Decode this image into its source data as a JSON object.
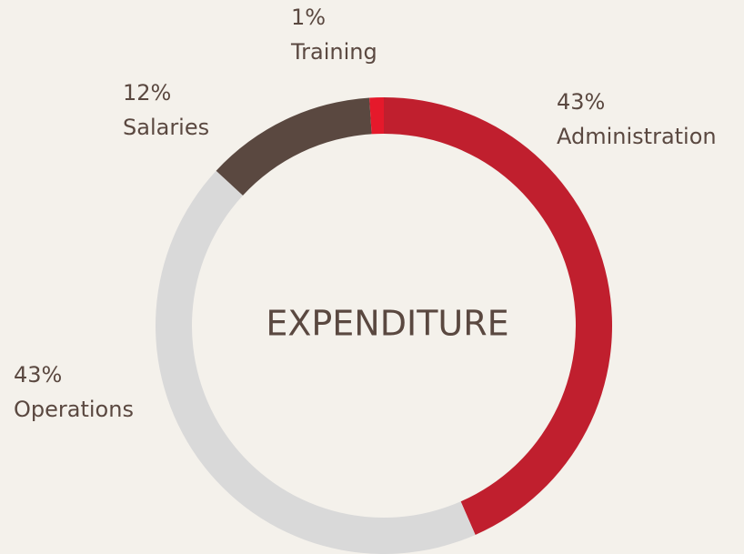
{
  "chart_data": {
    "type": "donut",
    "title": "EXPENDITURE",
    "categories": [
      "Administration",
      "Operations",
      "Salaries",
      "Training"
    ],
    "values": [
      43,
      43,
      12,
      1
    ],
    "value_labels": [
      "43%",
      "43%",
      "12%",
      "1%"
    ],
    "colors": [
      "#c01f2e",
      "#d9d9d9",
      "#5a4840",
      "#e5192b"
    ]
  }
}
